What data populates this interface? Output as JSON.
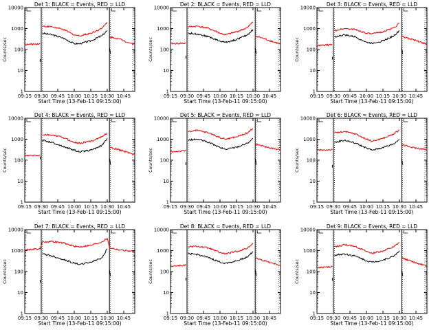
{
  "colors": {
    "events": "#000000",
    "lld": "#e00000",
    "background": "#ffffff",
    "axis": "#000000"
  },
  "chart_data": [
    {
      "type": "line",
      "title": "Det 1: BLACK = Events, RED = LLD",
      "xlabel": "Start Time (13-Feb-11 09:15:00)",
      "ylabel": "Counts/sec",
      "log_y": true,
      "ylim": [
        1,
        10000
      ],
      "y_ticks": [
        "1",
        "10",
        "100",
        "1000",
        "10000"
      ],
      "xlim": [
        "09:15",
        "10:55"
      ],
      "x_ticks": [
        "09:15",
        "09:30",
        "09:45",
        "10:00",
        "10:15",
        "10:30",
        "10:45"
      ],
      "gap_markers": [
        "09:30",
        "10:32"
      ],
      "series": [
        {
          "name": "Events",
          "color": "#000000",
          "x": [
            "09:29",
            "09:31",
            "09:40",
            "09:50",
            "10:00",
            "10:05",
            "10:15",
            "10:25",
            "10:30",
            "10:32",
            "10:33"
          ],
          "y": [
            35,
            600,
            500,
            350,
            190,
            190,
            260,
            450,
            800,
            120,
            60
          ]
        },
        {
          "name": "LLD",
          "color": "#e00000",
          "x": [
            "09:15",
            "09:29",
            "09:31",
            "09:40",
            "09:50",
            "10:00",
            "10:05",
            "10:15",
            "10:25",
            "10:30",
            "10:32",
            "10:40",
            "10:55"
          ],
          "y": [
            170,
            190,
            1300,
            1200,
            900,
            500,
            450,
            600,
            1000,
            2000,
            400,
            330,
            170
          ]
        }
      ]
    },
    {
      "type": "line",
      "title": "Det 2: BLACK = Events, RED = LLD",
      "xlabel": "Start Time (13-Feb-11 09:15:00)",
      "ylabel": "Counts/sec",
      "log_y": true,
      "ylim": [
        1,
        10000
      ],
      "y_ticks": [
        "1",
        "10",
        "100",
        "1000",
        "10000"
      ],
      "xlim": [
        "09:15",
        "10:55"
      ],
      "x_ticks": [
        "09:15",
        "09:30",
        "09:45",
        "10:00",
        "10:15",
        "10:30",
        "10:45"
      ],
      "gap_markers": [
        "09:30",
        "10:32"
      ],
      "series": [
        {
          "name": "Events",
          "color": "#000000",
          "x": [
            "09:29",
            "09:31",
            "09:40",
            "09:50",
            "10:00",
            "10:05",
            "10:15",
            "10:25",
            "10:30",
            "10:32",
            "10:33"
          ],
          "y": [
            50,
            600,
            550,
            400,
            250,
            220,
            300,
            500,
            900,
            120,
            60
          ]
        },
        {
          "name": "LLD",
          "color": "#e00000",
          "x": [
            "09:15",
            "09:29",
            "09:31",
            "09:40",
            "09:50",
            "10:00",
            "10:05",
            "10:15",
            "10:25",
            "10:30",
            "10:32",
            "10:40",
            "10:55"
          ],
          "y": [
            190,
            200,
            1200,
            1300,
            1000,
            600,
            500,
            700,
            1100,
            2100,
            450,
            330,
            180
          ]
        }
      ]
    },
    {
      "type": "line",
      "title": "Det 3: BLACK = Events, RED = LLD",
      "xlabel": "Start Time (13-Feb-11 09:15:00)",
      "ylabel": "Counts/sec",
      "log_y": true,
      "ylim": [
        1,
        10000
      ],
      "y_ticks": [
        "1",
        "10",
        "100",
        "1000",
        "10000"
      ],
      "xlim": [
        "09:15",
        "10:55"
      ],
      "x_ticks": [
        "09:15",
        "09:30",
        "09:45",
        "10:00",
        "10:15",
        "10:30",
        "10:45"
      ],
      "gap_markers": [
        "09:30",
        "10:32"
      ],
      "series": [
        {
          "name": "Events",
          "color": "#000000",
          "x": [
            "09:29",
            "09:31",
            "09:40",
            "09:50",
            "10:00",
            "10:05",
            "10:15",
            "10:25",
            "10:30",
            "10:32",
            "10:33"
          ],
          "y": [
            45,
            400,
            500,
            400,
            220,
            200,
            260,
            450,
            800,
            120,
            60
          ]
        },
        {
          "name": "LLD",
          "color": "#e00000",
          "x": [
            "09:15",
            "09:29",
            "09:31",
            "09:40",
            "09:50",
            "10:00",
            "10:05",
            "10:15",
            "10:25",
            "10:30",
            "10:32",
            "10:40",
            "10:55"
          ],
          "y": [
            150,
            170,
            800,
            1000,
            900,
            600,
            550,
            700,
            1100,
            1800,
            420,
            320,
            180
          ]
        }
      ]
    },
    {
      "type": "line",
      "title": "Det 4: BLACK = Events, RED = LLD",
      "xlabel": "Start Time (13-Feb-11 09:15:00)",
      "ylabel": "Counts/sec",
      "log_y": true,
      "ylim": [
        1,
        10000
      ],
      "y_ticks": [
        "1",
        "10",
        "100",
        "1000",
        "10000"
      ],
      "xlim": [
        "09:15",
        "10:55"
      ],
      "x_ticks": [
        "09:15",
        "09:30",
        "09:45",
        "10:00",
        "10:15",
        "10:30",
        "10:45"
      ],
      "gap_markers": [
        "09:30",
        "10:32"
      ],
      "series": [
        {
          "name": "Events",
          "color": "#000000",
          "x": [
            "09:29",
            "09:31",
            "09:40",
            "09:50",
            "10:00",
            "10:05",
            "10:15",
            "10:25",
            "10:30",
            "10:32",
            "10:33"
          ],
          "y": [
            150,
            900,
            700,
            450,
            300,
            250,
            300,
            500,
            1100,
            120,
            60
          ]
        },
        {
          "name": "LLD",
          "color": "#e00000",
          "x": [
            "09:15",
            "09:29",
            "09:31",
            "09:40",
            "09:50",
            "10:00",
            "10:05",
            "10:15",
            "10:25",
            "10:30",
            "10:32",
            "10:40",
            "10:55"
          ],
          "y": [
            160,
            170,
            1600,
            1600,
            1200,
            700,
            650,
            800,
            1300,
            2000,
            400,
            320,
            190
          ]
        }
      ]
    },
    {
      "type": "line",
      "title": "Det 5: BLACK = Events, RED = LLD",
      "xlabel": "Start Time (13-Feb-11 09:15:00)",
      "ylabel": "Counts/sec",
      "log_y": true,
      "ylim": [
        1,
        10000
      ],
      "y_ticks": [
        "1",
        "10",
        "100",
        "1000",
        "10000"
      ],
      "xlim": [
        "09:15",
        "10:55"
      ],
      "x_ticks": [
        "09:15",
        "09:30",
        "09:45",
        "10:00",
        "10:15",
        "10:30",
        "10:45"
      ],
      "gap_markers": [
        "09:30",
        "10:32"
      ],
      "series": [
        {
          "name": "Events",
          "color": "#000000",
          "x": [
            "09:29",
            "09:31",
            "09:40",
            "09:50",
            "10:00",
            "10:05",
            "10:15",
            "10:25",
            "10:30",
            "10:32",
            "10:33"
          ],
          "y": [
            80,
            900,
            1000,
            700,
            400,
            330,
            420,
            650,
            1100,
            120,
            60
          ]
        },
        {
          "name": "LLD",
          "color": "#e00000",
          "x": [
            "09:15",
            "09:29",
            "09:31",
            "09:40",
            "09:50",
            "10:00",
            "10:05",
            "10:15",
            "10:25",
            "10:30",
            "10:32",
            "10:40",
            "10:55"
          ],
          "y": [
            250,
            280,
            2400,
            2600,
            2000,
            1200,
            1000,
            1300,
            2000,
            3300,
            600,
            450,
            300
          ]
        }
      ]
    },
    {
      "type": "line",
      "title": "Det 6: BLACK = Events, RED = LLD",
      "xlabel": "Start Time (13-Feb-11 09:15:00)",
      "ylabel": "Counts/sec",
      "log_y": true,
      "ylim": [
        1,
        10000
      ],
      "y_ticks": [
        "1",
        "10",
        "100",
        "1000",
        "10000"
      ],
      "xlim": [
        "09:15",
        "10:55"
      ],
      "x_ticks": [
        "09:15",
        "09:30",
        "09:45",
        "10:00",
        "10:15",
        "10:30",
        "10:45"
      ],
      "gap_markers": [
        "09:30",
        "10:32"
      ],
      "series": [
        {
          "name": "Events",
          "color": "#000000",
          "x": [
            "09:29",
            "09:31",
            "09:40",
            "09:50",
            "10:00",
            "10:05",
            "10:15",
            "10:25",
            "10:30",
            "10:32",
            "10:33"
          ],
          "y": [
            60,
            700,
            900,
            650,
            380,
            300,
            400,
            600,
            1000,
            120,
            60
          ]
        },
        {
          "name": "LLD",
          "color": "#e00000",
          "x": [
            "09:15",
            "09:29",
            "09:31",
            "09:40",
            "09:50",
            "10:00",
            "10:05",
            "10:15",
            "10:25",
            "10:30",
            "10:32",
            "10:40",
            "10:55"
          ],
          "y": [
            300,
            320,
            2000,
            2300,
            1800,
            1000,
            800,
            1100,
            1800,
            2800,
            550,
            420,
            320
          ]
        }
      ]
    },
    {
      "type": "line",
      "title": "Det 7: BLACK = Events, RED = LLD",
      "xlabel": "Start Time (13-Feb-11 09:15:00)",
      "ylabel": "Counts/sec",
      "log_y": true,
      "ylim": [
        1,
        10000
      ],
      "y_ticks": [
        "1",
        "10",
        "100",
        "1000",
        "10000"
      ],
      "xlim": [
        "09:15",
        "10:55"
      ],
      "x_ticks": [
        "09:15",
        "09:30",
        "09:45",
        "10:00",
        "10:15",
        "10:30",
        "10:45"
      ],
      "gap_markers": [
        "09:30",
        "10:32"
      ],
      "series": [
        {
          "name": "Events",
          "color": "#000000",
          "x": [
            "09:29",
            "09:31",
            "09:40",
            "09:50",
            "10:00",
            "10:05",
            "10:15",
            "10:25",
            "10:30",
            "10:32",
            "10:33"
          ],
          "y": [
            40,
            700,
            550,
            380,
            250,
            220,
            280,
            450,
            1200,
            120,
            60
          ]
        },
        {
          "name": "LLD",
          "color": "#e00000",
          "x": [
            "09:15",
            "09:29",
            "09:31",
            "09:40",
            "09:50",
            "10:00",
            "10:05",
            "10:15",
            "10:25",
            "10:30",
            "10:32",
            "10:40",
            "10:55"
          ],
          "y": [
            1100,
            1200,
            2600,
            2700,
            2300,
            1600,
            1500,
            1800,
            2600,
            3800,
            1400,
            1100,
            900
          ]
        }
      ]
    },
    {
      "type": "line",
      "title": "Det 8: BLACK = Events, RED = LLD",
      "xlabel": "Start Time (13-Feb-11 09:15:00)",
      "ylabel": "Counts/sec",
      "log_y": true,
      "ylim": [
        1,
        10000
      ],
      "y_ticks": [
        "1",
        "10",
        "100",
        "1000",
        "10000"
      ],
      "xlim": [
        "09:15",
        "10:55"
      ],
      "x_ticks": [
        "09:15",
        "09:30",
        "09:45",
        "10:00",
        "10:15",
        "10:30",
        "10:45"
      ],
      "gap_markers": [
        "09:30",
        "10:32"
      ],
      "series": [
        {
          "name": "Events",
          "color": "#000000",
          "x": [
            "09:29",
            "09:31",
            "09:40",
            "09:50",
            "10:00",
            "10:05",
            "10:15",
            "10:25",
            "10:30",
            "10:32",
            "10:33"
          ],
          "y": [
            50,
            700,
            650,
            450,
            280,
            250,
            320,
            500,
            900,
            120,
            60
          ]
        },
        {
          "name": "LLD",
          "color": "#e00000",
          "x": [
            "09:15",
            "09:29",
            "09:31",
            "09:40",
            "09:50",
            "10:00",
            "10:05",
            "10:15",
            "10:25",
            "10:30",
            "10:32",
            "10:40",
            "10:55"
          ],
          "y": [
            180,
            200,
            1500,
            1600,
            1300,
            800,
            700,
            900,
            1300,
            2300,
            450,
            330,
            200
          ]
        }
      ]
    },
    {
      "type": "line",
      "title": "Det 9: BLACK = Events, RED = LLD",
      "xlabel": "Start Time (13-Feb-11 09:15:00)",
      "ylabel": "Counts/sec",
      "log_y": true,
      "ylim": [
        1,
        10000
      ],
      "y_ticks": [
        "1",
        "10",
        "100",
        "1000",
        "10000"
      ],
      "xlim": [
        "09:15",
        "10:55"
      ],
      "x_ticks": [
        "09:15",
        "09:30",
        "09:45",
        "10:00",
        "10:15",
        "10:30",
        "10:45"
      ],
      "gap_markers": [
        "09:30",
        "10:32"
      ],
      "series": [
        {
          "name": "Events",
          "color": "#000000",
          "x": [
            "09:29",
            "09:31",
            "09:40",
            "09:50",
            "10:00",
            "10:05",
            "10:15",
            "10:25",
            "10:30",
            "10:32",
            "10:33"
          ],
          "y": [
            50,
            600,
            700,
            550,
            330,
            280,
            350,
            550,
            1000,
            120,
            60
          ]
        },
        {
          "name": "LLD",
          "color": "#e00000",
          "x": [
            "09:15",
            "09:29",
            "09:31",
            "09:40",
            "09:50",
            "10:00",
            "10:05",
            "10:15",
            "10:25",
            "10:30",
            "10:32",
            "10:40",
            "10:55"
          ],
          "y": [
            150,
            170,
            1500,
            1900,
            1600,
            900,
            750,
            950,
            1500,
            2500,
            450,
            320,
            180
          ]
        }
      ]
    }
  ]
}
